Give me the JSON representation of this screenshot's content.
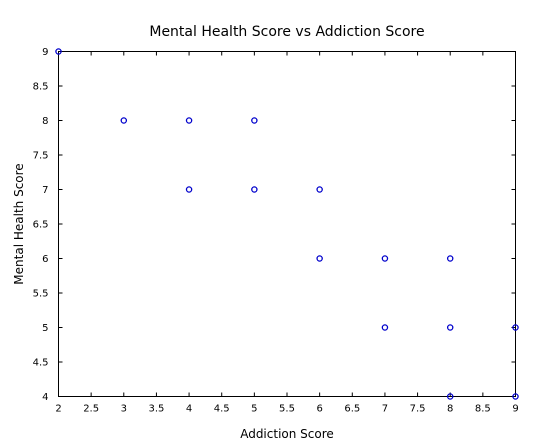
{
  "chart_data": {
    "type": "scatter",
    "title": "Mental Health Score vs Addiction Score",
    "xlabel": "Addiction Score",
    "ylabel": "Mental Health Score",
    "xlim": [
      2,
      9
    ],
    "ylim": [
      4,
      9
    ],
    "x_ticks": [
      "2",
      "2.5",
      "3",
      "3.5",
      "4",
      "4.5",
      "5",
      "5.5",
      "6",
      "6.5",
      "7",
      "7.5",
      "8",
      "8.5",
      "9"
    ],
    "y_ticks": [
      "4",
      "4.5",
      "5",
      "5.5",
      "6",
      "6.5",
      "7",
      "7.5",
      "8",
      "8.5",
      "9"
    ],
    "grid": false,
    "marker_color": "#0000cc",
    "marker": "open-circle",
    "points": [
      {
        "x": 2,
        "y": 9
      },
      {
        "x": 3,
        "y": 8
      },
      {
        "x": 4,
        "y": 8
      },
      {
        "x": 5,
        "y": 8
      },
      {
        "x": 4,
        "y": 7
      },
      {
        "x": 5,
        "y": 7
      },
      {
        "x": 6,
        "y": 7
      },
      {
        "x": 6,
        "y": 6
      },
      {
        "x": 7,
        "y": 6
      },
      {
        "x": 8,
        "y": 6
      },
      {
        "x": 7,
        "y": 5
      },
      {
        "x": 8,
        "y": 5
      },
      {
        "x": 9,
        "y": 5
      },
      {
        "x": 8,
        "y": 4
      },
      {
        "x": 9,
        "y": 4
      }
    ]
  }
}
